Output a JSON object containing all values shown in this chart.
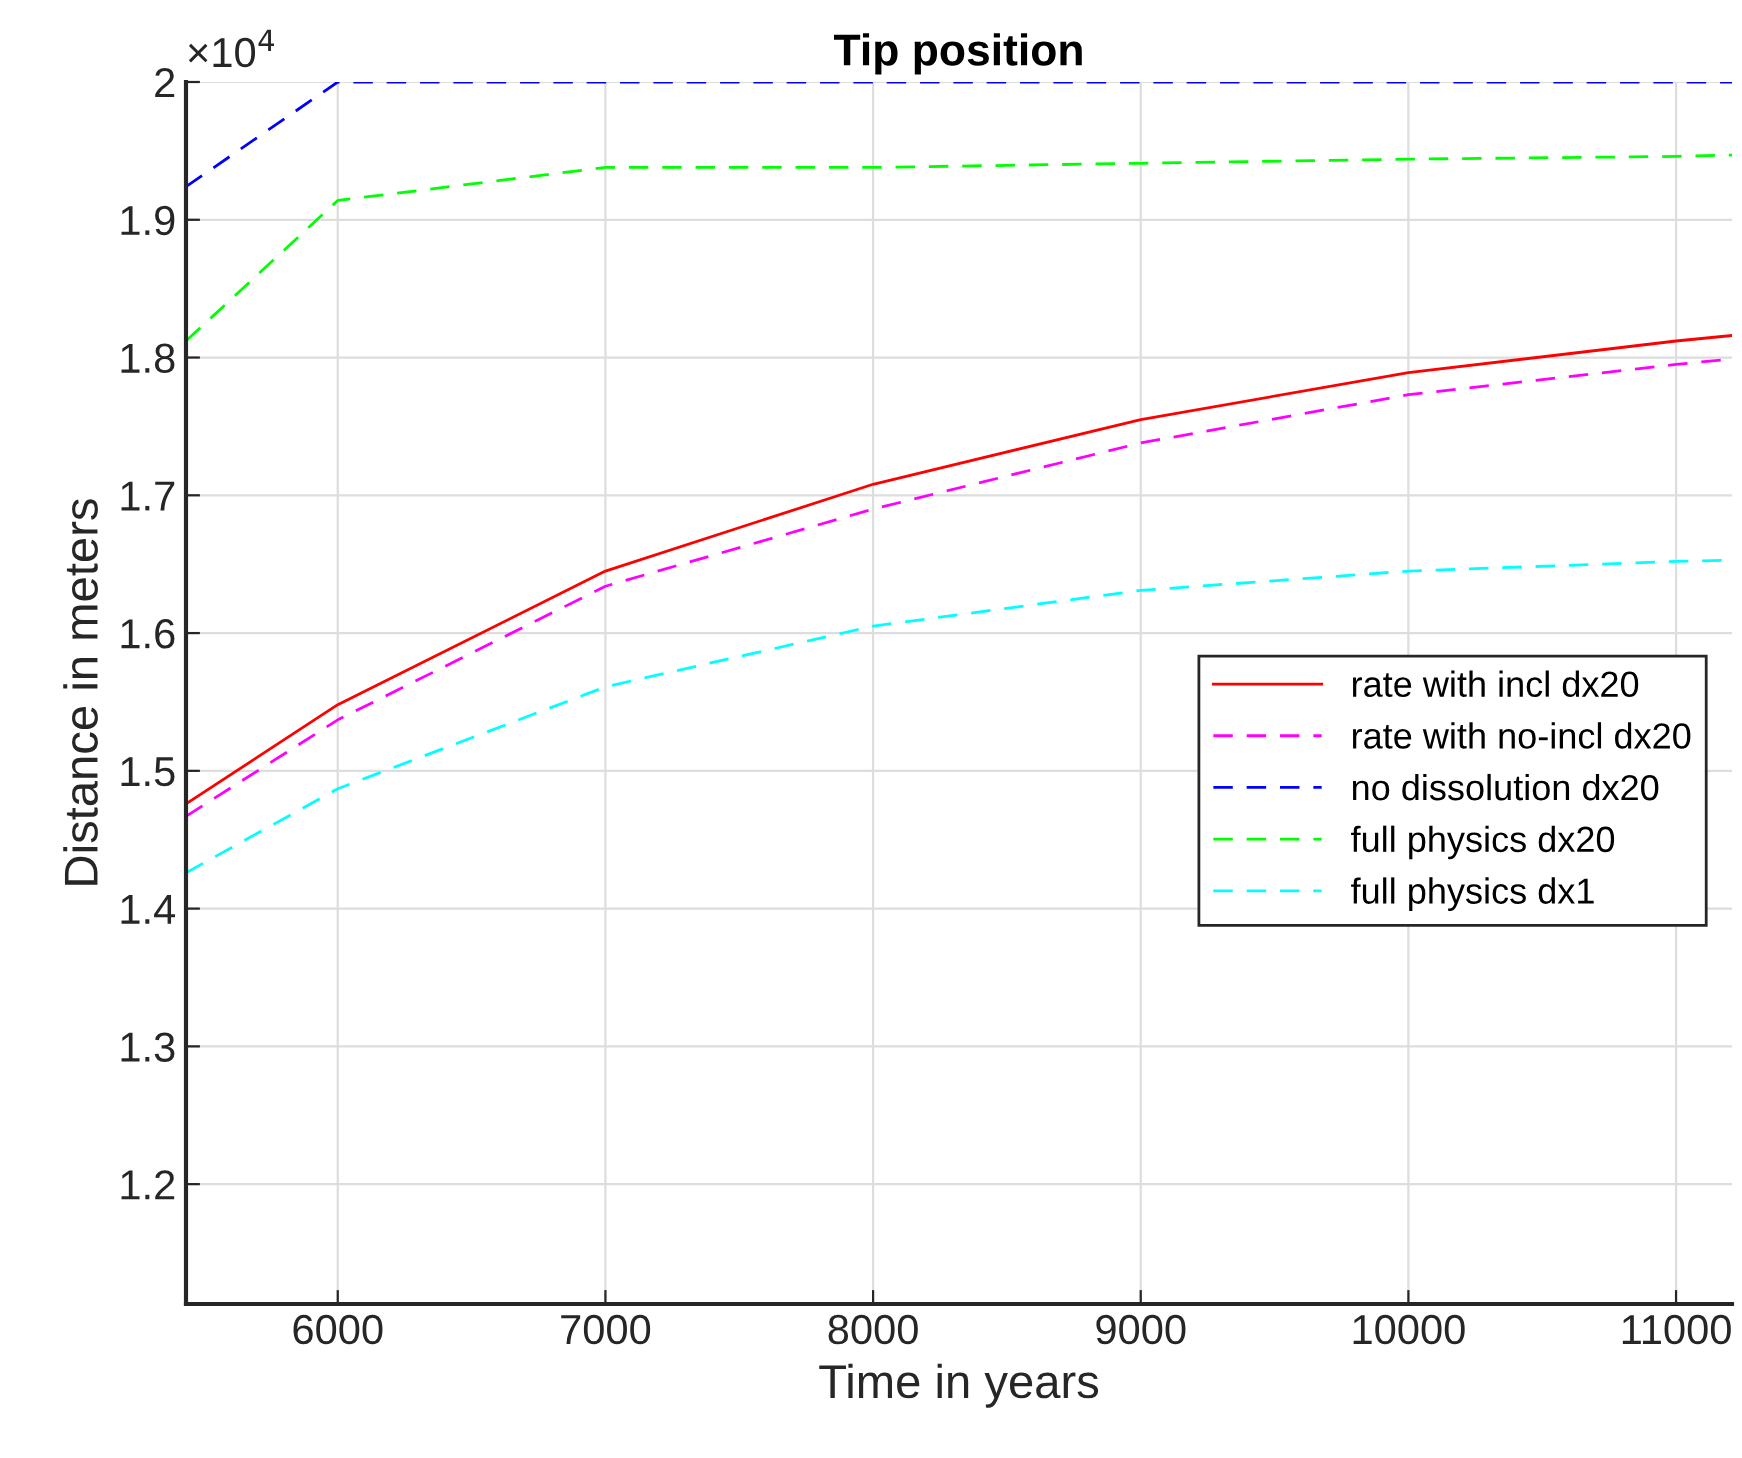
{
  "chart_data": {
    "type": "line",
    "title": "Tip position",
    "xlabel": "Time in years",
    "ylabel": "Distance in meters",
    "annotations": [
      "×10$^{4}$"
    ],
    "x": [
      5433,
      6000,
      7000,
      8000,
      9000,
      10000,
      11000,
      11209
    ],
    "series": [
      {
        "name": "rate with incl dx20",
        "color": "#ff0000",
        "line_style": "solid",
        "values": [
          1.476,
          1.548,
          1.645,
          1.708,
          1.755,
          1.789,
          1.812,
          1.816
        ]
      },
      {
        "name": "rate with no-incl dx20",
        "color": "#ff00ff",
        "line_style": "dashed",
        "values": [
          1.467,
          1.537,
          1.634,
          1.69,
          1.738,
          1.773,
          1.795,
          1.799
        ]
      },
      {
        "name": "no dissolution dx20",
        "color": "#0000ff",
        "line_style": "dashed",
        "values": [
          1.924,
          2.0,
          2.0,
          2.0,
          2.0,
          2.0,
          2.0,
          2.0
        ]
      },
      {
        "name": "full physics dx20",
        "color": "#00ff00",
        "line_style": "dashed",
        "values": [
          1.812,
          1.914,
          1.938,
          1.938,
          1.941,
          1.944,
          1.946,
          1.947
        ]
      },
      {
        "name": "full physics dx1",
        "color": "#00ffff",
        "line_style": "dashed",
        "values": [
          1.426,
          1.487,
          1.561,
          1.605,
          1.631,
          1.645,
          1.652,
          1.653
        ]
      }
    ],
    "xlim": [
      5433,
      11209
    ],
    "xticks": [
      6000,
      7000,
      8000,
      9000,
      10000,
      11000
    ],
    "ylim": [
      1.113,
      2.0
    ],
    "yticks": [
      1.2,
      1.3,
      1.4,
      1.5,
      1.6,
      1.7,
      1.8,
      1.9,
      2
    ],
    "grid": true,
    "legend": "right"
  }
}
